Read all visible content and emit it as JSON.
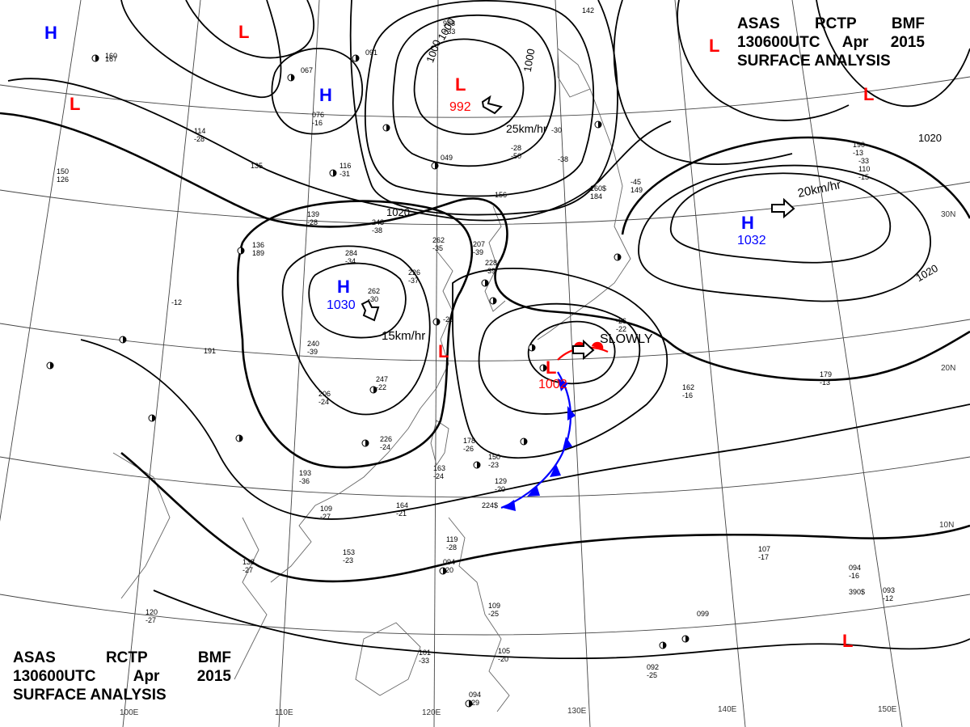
{
  "header": {
    "line1": [
      "ASAS",
      "RCTP",
      "BMF"
    ],
    "line2": [
      "130600UTC",
      "Apr",
      "2015"
    ],
    "line3": "SURFACE ANALYSIS"
  },
  "grid": {
    "lon_labels": [
      "100E",
      "110E",
      "120E",
      "130E",
      "140E",
      "150E"
    ],
    "lat_labels": [
      "30N",
      "20N",
      "10N"
    ]
  },
  "isobars": {
    "labels": [
      "1000",
      "1000",
      "1000",
      "1020",
      "1020",
      "1020"
    ]
  },
  "pressure_centers": [
    {
      "type": "H",
      "value": ""
    },
    {
      "type": "L",
      "value": ""
    },
    {
      "type": "H",
      "value": ""
    },
    {
      "type": "L",
      "value": ""
    },
    {
      "type": "L",
      "value": "992"
    },
    {
      "type": "L",
      "value": ""
    },
    {
      "type": "L",
      "value": ""
    },
    {
      "type": "H",
      "value": "1032"
    },
    {
      "type": "H",
      "value": "1030"
    },
    {
      "type": "L",
      "value": ""
    },
    {
      "type": "L",
      "value": "1002"
    },
    {
      "type": "L",
      "value": ""
    }
  ],
  "motions": [
    "25km/hr",
    "20km/hr",
    "15km/hr",
    "SLOWLY"
  ],
  "colors": {
    "high": "#0000ff",
    "low": "#ff0000",
    "isobar": "#000000",
    "coast": "#666666"
  },
  "station_obs": [
    "160",
    "067",
    "091",
    "988",
    "+33",
    "142",
    "114",
    "-28",
    "135",
    "116",
    "-31",
    "049",
    "156",
    "-30",
    "-38",
    "139",
    "-28",
    "248",
    "-38",
    "262",
    "-35",
    "207",
    "-39",
    "284",
    "-34",
    "226",
    "-37",
    "228",
    "-39",
    "262",
    "-30",
    "-25",
    "240",
    "-39",
    "247",
    "-22",
    "206",
    "-24",
    "226",
    "-24",
    "178",
    "-26",
    "163",
    "-24",
    "150",
    "-23",
    "129",
    "-20",
    "224$",
    "193",
    "-36",
    "109",
    "-27",
    "164",
    "-21",
    "138",
    "-27",
    "153",
    "-23",
    "120",
    "-27",
    "119",
    "-28",
    "094",
    "-20",
    "109",
    "-25",
    "101",
    "-33",
    "094",
    "-29",
    "105",
    "-20",
    "092",
    "-25",
    "099",
    "107",
    "-17",
    "162",
    "-16",
    "179",
    "-13",
    "094",
    "-16",
    "093",
    "-12",
    "190",
    "-13",
    "167",
    "150",
    "126",
    "136",
    "189",
    "-12",
    "191",
    "-26",
    "-22",
    "-45",
    "149",
    "-33",
    "110",
    "-15",
    "390$",
    "160$",
    "184",
    "-28",
    "-50",
    "076",
    "-16"
  ]
}
